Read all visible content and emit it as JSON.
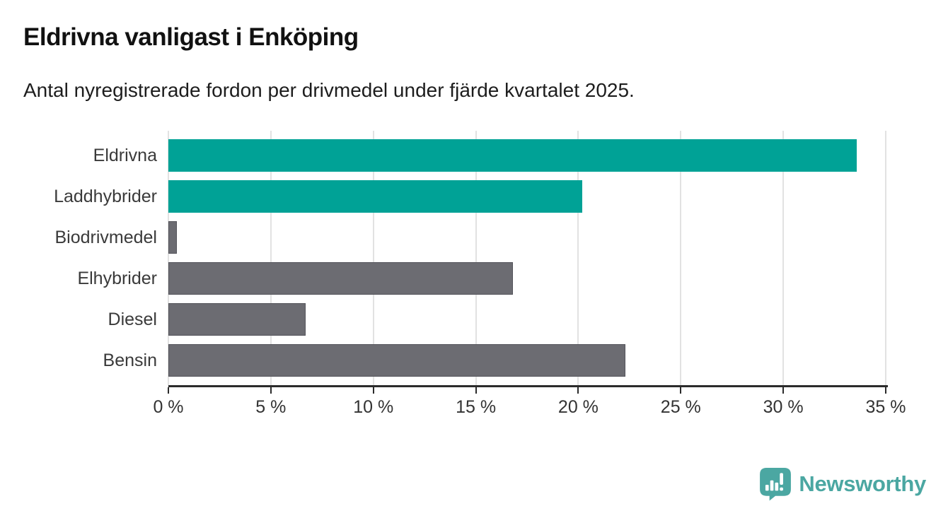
{
  "header": {
    "title": "Eldrivna vanligast i Enköping",
    "subtitle": "Antal nyregistrerade fordon per drivmedel under fjärde kvartalet 2025."
  },
  "chart_data": {
    "type": "bar",
    "orientation": "horizontal",
    "title": "Eldrivna vanligast i Enköping",
    "subtitle": "Antal nyregistrerade fordon per drivmedel under fjärde kvartalet 2025.",
    "categories": [
      "Eldrivna",
      "Laddhybrider",
      "Biodrivmedel",
      "Elhybrider",
      "Diesel",
      "Bensin"
    ],
    "values": [
      33.6,
      20.2,
      0.4,
      16.8,
      6.7,
      22.3
    ],
    "unit": "%",
    "bar_colors": [
      "#00a296",
      "#00a296",
      "#6c6c72",
      "#6c6c72",
      "#6c6c72",
      "#6c6c72"
    ],
    "highlight_color": "#00a296",
    "default_color": "#6c6c72",
    "xlabel": "",
    "ylabel": "",
    "xlim": [
      0,
      35
    ],
    "x_ticks": [
      0,
      5,
      10,
      15,
      20,
      25,
      30,
      35
    ],
    "x_tick_labels": [
      "0 %",
      "5 %",
      "10 %",
      "15 %",
      "20 %",
      "25 %",
      "30 %",
      "35 %"
    ],
    "grid": "vertical",
    "legend": "none"
  },
  "branding": {
    "logo_text": "Newsworthy",
    "logo_color": "#4ba7a2",
    "logo_icon": "speech-bubble-bar-chart-icon"
  }
}
